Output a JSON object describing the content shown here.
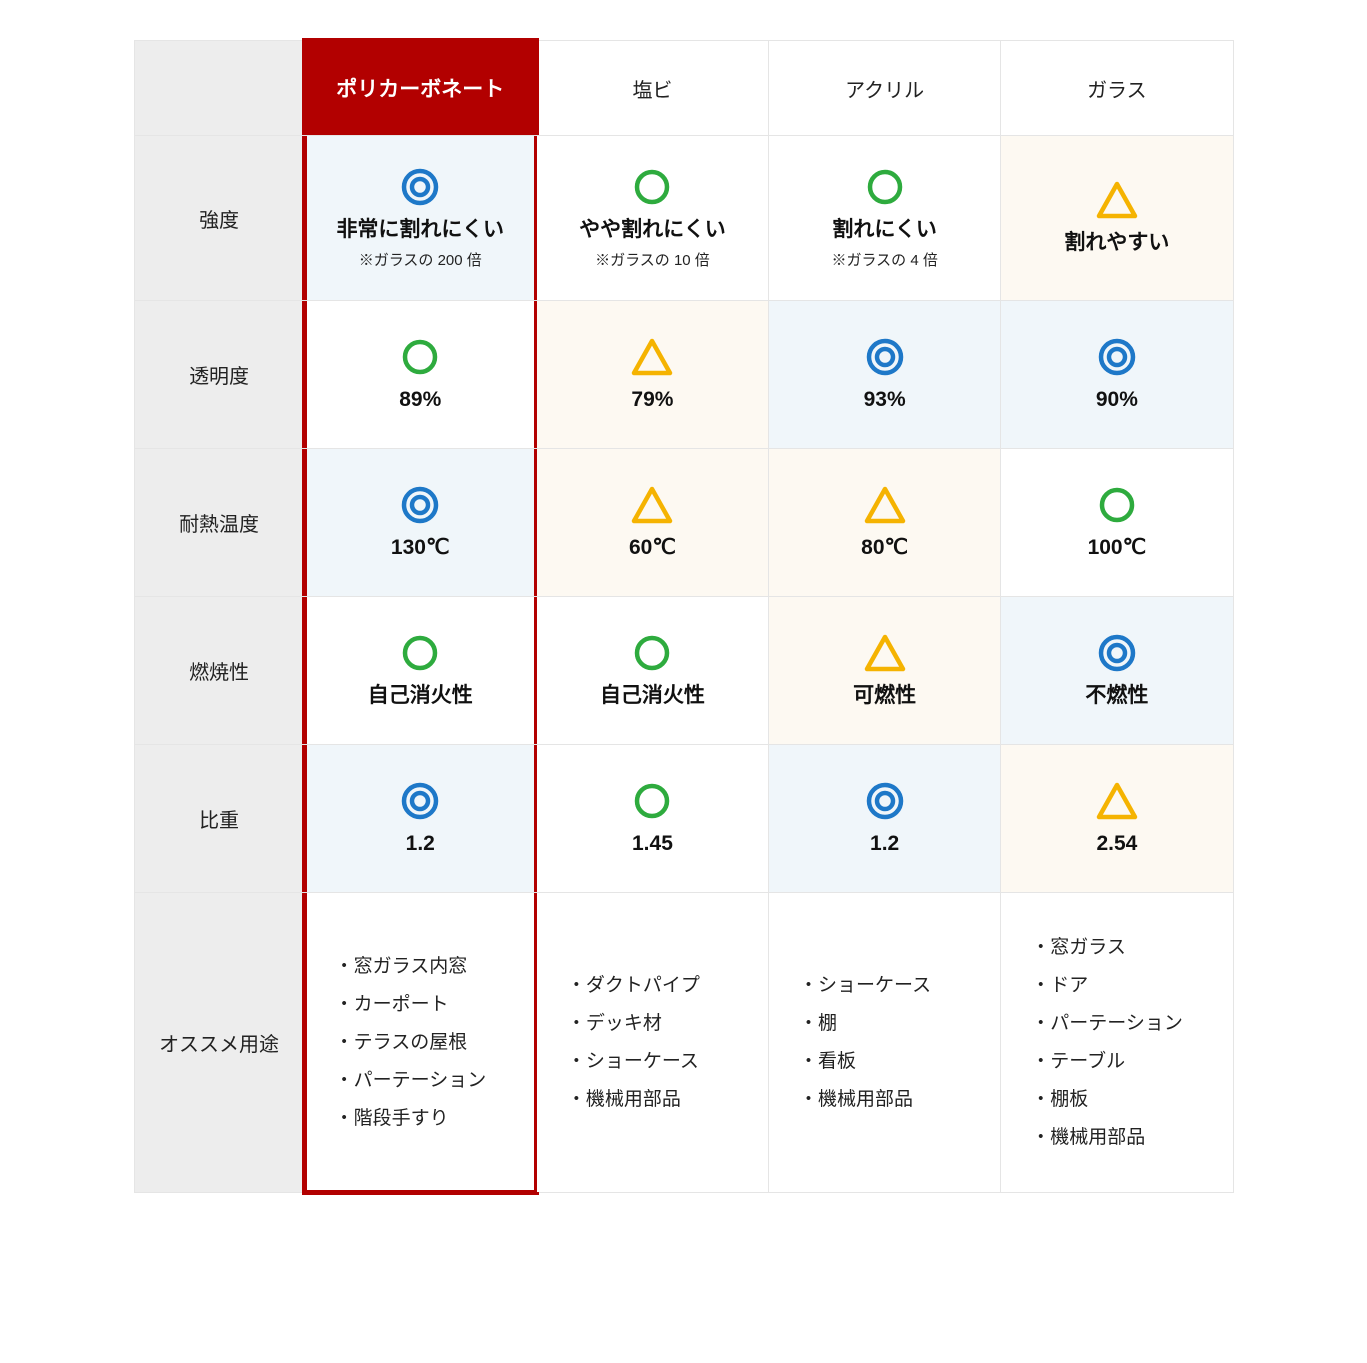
{
  "columns": [
    "ポリカーボネート",
    "塩ビ",
    "アクリル",
    "ガラス"
  ],
  "featured_col_index": 0,
  "row_labels": [
    "強度",
    "透明度",
    "耐熱温度",
    "燃焼性",
    "比重",
    "オススメ用途"
  ],
  "symbols": {
    "double_circle": {
      "type": "double_circle",
      "color": "#1e78c8"
    },
    "circle": {
      "type": "circle",
      "color": "#2eab3e"
    },
    "triangle": {
      "type": "triangle",
      "color": "#f5b301"
    }
  },
  "bg_colors": {
    "blue": "#f0f6fa",
    "cream": "#fdf9f2",
    "white": "#ffffff"
  },
  "rows": [
    {
      "key": "strength",
      "cells": [
        {
          "sym": "double_circle",
          "val": "非常に割れにくい",
          "note": "※ガラスの 200 倍",
          "bg": "blue"
        },
        {
          "sym": "circle",
          "val": "やや割れにくい",
          "note": "※ガラスの 10 倍",
          "bg": "white"
        },
        {
          "sym": "circle",
          "val": "割れにくい",
          "note": "※ガラスの 4 倍",
          "bg": "white"
        },
        {
          "sym": "triangle",
          "val": "割れやすい",
          "note": "",
          "bg": "cream"
        }
      ]
    },
    {
      "key": "transparency",
      "cells": [
        {
          "sym": "circle",
          "val": "89%",
          "bg": "white"
        },
        {
          "sym": "triangle",
          "val": "79%",
          "bg": "cream"
        },
        {
          "sym": "double_circle",
          "val": "93%",
          "bg": "blue"
        },
        {
          "sym": "double_circle",
          "val": "90%",
          "bg": "blue"
        }
      ]
    },
    {
      "key": "heat",
      "cells": [
        {
          "sym": "double_circle",
          "val": "130℃",
          "bg": "blue"
        },
        {
          "sym": "triangle",
          "val": "60℃",
          "bg": "cream"
        },
        {
          "sym": "triangle",
          "val": "80℃",
          "bg": "cream"
        },
        {
          "sym": "circle",
          "val": "100℃",
          "bg": "white"
        }
      ]
    },
    {
      "key": "flammability",
      "cells": [
        {
          "sym": "circle",
          "val": "自己消火性",
          "bg": "white"
        },
        {
          "sym": "circle",
          "val": "自己消火性",
          "bg": "white"
        },
        {
          "sym": "triangle",
          "val": "可燃性",
          "bg": "cream"
        },
        {
          "sym": "double_circle",
          "val": "不燃性",
          "bg": "blue"
        }
      ]
    },
    {
      "key": "density",
      "cells": [
        {
          "sym": "double_circle",
          "val": "1.2",
          "bg": "blue"
        },
        {
          "sym": "circle",
          "val": "1.45",
          "bg": "white"
        },
        {
          "sym": "double_circle",
          "val": "1.2",
          "bg": "blue"
        },
        {
          "sym": "triangle",
          "val": "2.54",
          "bg": "cream"
        }
      ]
    }
  ],
  "uses": [
    [
      "・窓ガラス内窓",
      "・カーポート",
      "・テラスの屋根",
      "・パーテーション",
      "・階段手すり"
    ],
    [
      "・ダクトパイプ",
      "・デッキ材",
      "・ショーケース",
      "・機械用部品"
    ],
    [
      "・ショーケース",
      "・棚",
      "・看板",
      "・機械用部品"
    ],
    [
      "・窓ガラス",
      "・ドア",
      "・パーテーション",
      "・テーブル",
      "・棚板",
      "・機械用部品"
    ]
  ],
  "styling": {
    "featured_header_bg": "#b20000",
    "featured_border": "#b20000",
    "row_header_bg": "#ededed",
    "border_color": "#e5e5e5",
    "val_fontsize": 21,
    "note_fontsize": 15,
    "rowlabel_fontsize": 20,
    "uses_fontsize": 19
  }
}
